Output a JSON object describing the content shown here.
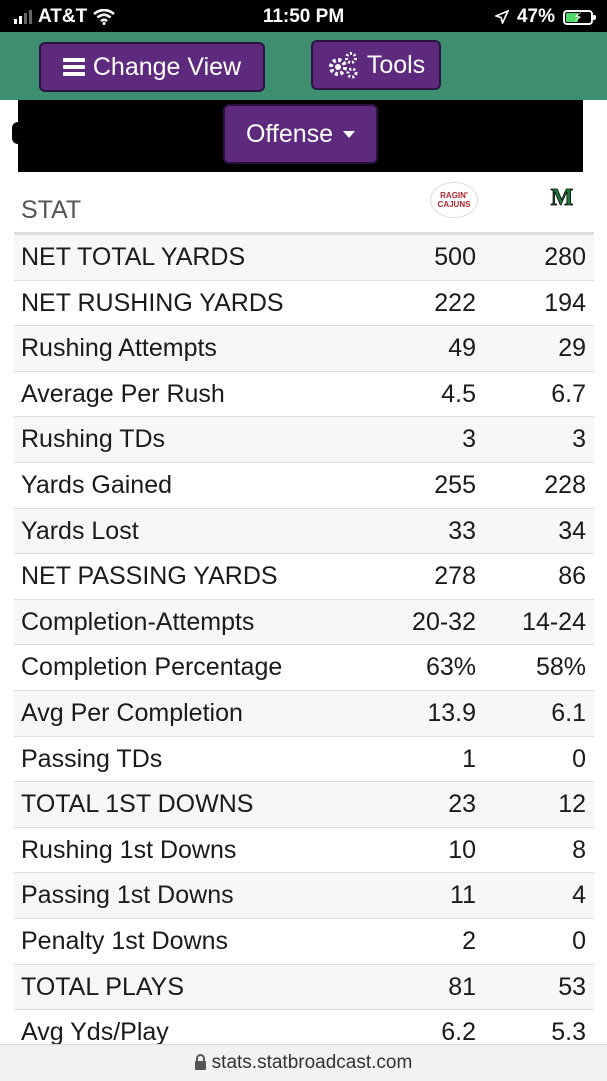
{
  "status_bar": {
    "carrier": "AT&T",
    "time": "11:50 PM",
    "battery": "47%"
  },
  "toolbar": {
    "change_view_label": "Change View",
    "tools_label": "Tools"
  },
  "filter": {
    "selected": "Offense"
  },
  "table": {
    "header_label": "STAT",
    "team1_logo_text": [
      "RAGIN'",
      "CAJUNS"
    ],
    "team2_logo_text": "M",
    "rows": [
      {
        "stat": "NET TOTAL YARDS",
        "team1": "500",
        "team2": "280"
      },
      {
        "stat": "NET RUSHING YARDS",
        "team1": "222",
        "team2": "194"
      },
      {
        "stat": "Rushing Attempts",
        "team1": "49",
        "team2": "29"
      },
      {
        "stat": "Average Per Rush",
        "team1": "4.5",
        "team2": "6.7"
      },
      {
        "stat": "Rushing TDs",
        "team1": "3",
        "team2": "3"
      },
      {
        "stat": "Yards Gained",
        "team1": "255",
        "team2": "228"
      },
      {
        "stat": "Yards Lost",
        "team1": "33",
        "team2": "34"
      },
      {
        "stat": "NET PASSING YARDS",
        "team1": "278",
        "team2": "86"
      },
      {
        "stat": "Completion-Attempts",
        "team1": "20-32",
        "team2": "14-24"
      },
      {
        "stat": "Completion Percentage",
        "team1": "63%",
        "team2": "58%"
      },
      {
        "stat": "Avg Per Completion",
        "team1": "13.9",
        "team2": "6.1"
      },
      {
        "stat": "Passing TDs",
        "team1": "1",
        "team2": "0"
      },
      {
        "stat": "TOTAL 1ST DOWNS",
        "team1": "23",
        "team2": "12"
      },
      {
        "stat": "Rushing 1st Downs",
        "team1": "10",
        "team2": "8"
      },
      {
        "stat": "Passing 1st Downs",
        "team1": "11",
        "team2": "4"
      },
      {
        "stat": "Penalty 1st Downs",
        "team1": "2",
        "team2": "0"
      },
      {
        "stat": "TOTAL PLAYS",
        "team1": "81",
        "team2": "53"
      },
      {
        "stat": "Avg Yds/Play",
        "team1": "6.2",
        "team2": "5.3"
      }
    ]
  },
  "url_bar": {
    "url": "stats.statbroadcast.com"
  },
  "colors": {
    "toolbar_green": "#3e8f6f",
    "button_purple": "#5d2a7e"
  }
}
